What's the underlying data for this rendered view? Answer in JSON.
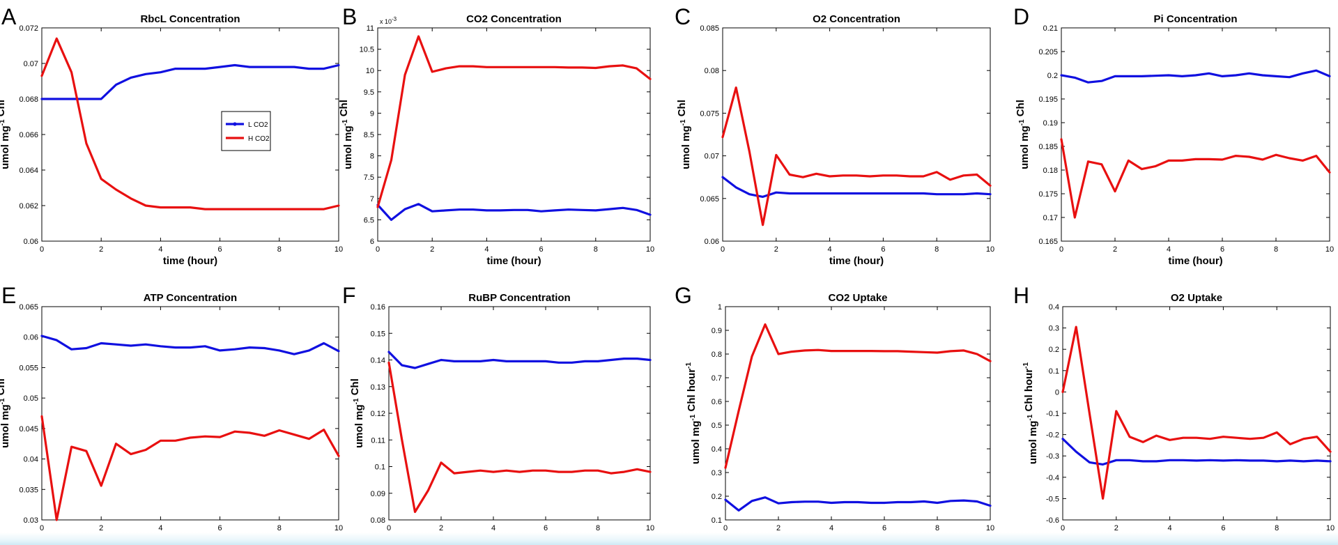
{
  "colors": {
    "low_co2": "#1010e0",
    "high_co2": "#e81010",
    "axes": "#000000"
  },
  "legend": {
    "entries": [
      "L CO2",
      "H CO2"
    ],
    "panel": "A",
    "placement": "right-center"
  },
  "chart_data": [
    {
      "panel": "A",
      "type": "line",
      "title": "RbcL Concentration",
      "xlabel": "time (hour)",
      "ylabel": "umol mg-1 Chl",
      "xlim": [
        0,
        10
      ],
      "ylim": [
        0.06,
        0.072
      ],
      "xticks": [
        "0",
        "2",
        "4",
        "6",
        "8",
        "10"
      ],
      "yticks": [
        "0.06",
        "0.062",
        "0.064",
        "0.066",
        "0.068",
        "0.07",
        "0.072"
      ],
      "x": [
        0,
        0.5,
        1,
        1.5,
        2,
        2.5,
        3,
        3.5,
        4,
        4.5,
        5,
        5.5,
        6,
        6.5,
        7,
        7.5,
        8,
        8.5,
        9,
        9.5,
        10
      ],
      "series": [
        {
          "name": "L CO2",
          "values": [
            0.068,
            0.068,
            0.068,
            0.068,
            0.068,
            0.0688,
            0.0692,
            0.0694,
            0.0695,
            0.0697,
            0.0697,
            0.0697,
            0.0698,
            0.0699,
            0.0698,
            0.0698,
            0.0698,
            0.0698,
            0.0697,
            0.0697,
            0.0699
          ]
        },
        {
          "name": "H CO2",
          "values": [
            0.0693,
            0.0714,
            0.0695,
            0.0655,
            0.0635,
            0.0629,
            0.0624,
            0.062,
            0.0619,
            0.0619,
            0.0619,
            0.0618,
            0.0618,
            0.0618,
            0.0618,
            0.0618,
            0.0618,
            0.0618,
            0.0618,
            0.0618,
            0.062
          ]
        }
      ]
    },
    {
      "panel": "B",
      "type": "line",
      "title": "CO2 Concentration",
      "xlabel": "time (hour)",
      "ylabel": "umol mg-1 Chl",
      "exponent": "x 10",
      "exponent_power": "-3",
      "xlim": [
        0,
        10
      ],
      "ylim": [
        6,
        11
      ],
      "xticks": [
        "0",
        "2",
        "4",
        "6",
        "8",
        "10"
      ],
      "yticks": [
        "6",
        "6.5",
        "7",
        "7.5",
        "8",
        "8.5",
        "9",
        "9.5",
        "10",
        "10.5",
        "11"
      ],
      "x": [
        0,
        0.5,
        1,
        1.5,
        2,
        2.5,
        3,
        3.5,
        4,
        4.5,
        5,
        5.5,
        6,
        6.5,
        7,
        7.5,
        8,
        8.5,
        9,
        9.5,
        10
      ],
      "series": [
        {
          "name": "L CO2",
          "values": [
            6.85,
            6.5,
            6.75,
            6.87,
            6.7,
            6.72,
            6.74,
            6.74,
            6.72,
            6.72,
            6.73,
            6.73,
            6.7,
            6.72,
            6.74,
            6.73,
            6.72,
            6.75,
            6.78,
            6.73,
            6.62
          ]
        },
        {
          "name": "H CO2",
          "values": [
            6.8,
            7.9,
            9.9,
            10.8,
            9.97,
            10.05,
            10.1,
            10.1,
            10.08,
            10.08,
            10.08,
            10.08,
            10.08,
            10.08,
            10.07,
            10.07,
            10.06,
            10.1,
            10.12,
            10.05,
            9.8
          ]
        }
      ]
    },
    {
      "panel": "C",
      "type": "line",
      "title": "O2 Concentration",
      "xlabel": "time (hour)",
      "ylabel": "umol mg-1 Chl",
      "xlim": [
        0,
        10
      ],
      "ylim": [
        0.06,
        0.085
      ],
      "xticks": [
        "0",
        "2",
        "4",
        "6",
        "8",
        "10"
      ],
      "yticks": [
        "0.06",
        "0.065",
        "0.07",
        "0.075",
        "0.08",
        "0.085"
      ],
      "x": [
        0,
        0.5,
        1,
        1.5,
        2,
        2.5,
        3,
        3.5,
        4,
        4.5,
        5,
        5.5,
        6,
        6.5,
        7,
        7.5,
        8,
        8.5,
        9,
        9.5,
        10
      ],
      "series": [
        {
          "name": "L CO2",
          "values": [
            0.0675,
            0.0663,
            0.0655,
            0.0652,
            0.0657,
            0.0656,
            0.0656,
            0.0656,
            0.0656,
            0.0656,
            0.0656,
            0.0656,
            0.0656,
            0.0656,
            0.0656,
            0.0656,
            0.0655,
            0.0655,
            0.0655,
            0.0656,
            0.0655
          ]
        },
        {
          "name": "H CO2",
          "values": [
            0.0722,
            0.078,
            0.0705,
            0.0619,
            0.0701,
            0.0678,
            0.0675,
            0.0679,
            0.0676,
            0.0677,
            0.0677,
            0.0676,
            0.0677,
            0.0677,
            0.0676,
            0.0676,
            0.0681,
            0.0672,
            0.0677,
            0.0678,
            0.0665
          ]
        }
      ]
    },
    {
      "panel": "D",
      "type": "line",
      "title": "Pi Concentration",
      "xlabel": "time (hour)",
      "ylabel": "umol mg-1 Chl",
      "xlim": [
        0,
        10
      ],
      "ylim": [
        0.165,
        0.21
      ],
      "xticks": [
        "0",
        "2",
        "4",
        "6",
        "8",
        "10"
      ],
      "yticks": [
        "0.165",
        "0.17",
        "0.175",
        "0.18",
        "0.185",
        "0.19",
        "0.195",
        "0.2",
        "0.205",
        "0.21"
      ],
      "x": [
        0,
        0.5,
        1,
        1.5,
        2,
        2.5,
        3,
        3.5,
        4,
        4.5,
        5,
        5.5,
        6,
        6.5,
        7,
        7.5,
        8,
        8.5,
        9,
        9.5,
        10
      ],
      "series": [
        {
          "name": "L CO2",
          "values": [
            0.2,
            0.1995,
            0.1985,
            0.1988,
            0.1998,
            0.1998,
            0.1998,
            0.1999,
            0.2,
            0.1998,
            0.2,
            0.2004,
            0.1998,
            0.2,
            0.2004,
            0.2,
            0.1998,
            0.1996,
            0.2004,
            0.201,
            0.1998
          ]
        },
        {
          "name": "H CO2",
          "values": [
            0.1865,
            0.17,
            0.1818,
            0.1812,
            0.1755,
            0.182,
            0.1802,
            0.1808,
            0.182,
            0.182,
            0.1823,
            0.1823,
            0.1822,
            0.183,
            0.1828,
            0.1822,
            0.1832,
            0.1825,
            0.182,
            0.183,
            0.1795
          ]
        }
      ]
    },
    {
      "panel": "E",
      "type": "line",
      "title": "ATP Concentration",
      "xlabel": "time (hour)",
      "ylabel": "umol mg-1 Chl",
      "xlim": [
        0,
        10
      ],
      "ylim": [
        0.03,
        0.065
      ],
      "xticks": [
        "0",
        "2",
        "4",
        "6",
        "8",
        "10"
      ],
      "yticks": [
        "0.03",
        "0.035",
        "0.04",
        "0.045",
        "0.05",
        "0.055",
        "0.06",
        "0.065"
      ],
      "x": [
        0,
        0.5,
        1,
        1.5,
        2,
        2.5,
        3,
        3.5,
        4,
        4.5,
        5,
        5.5,
        6,
        6.5,
        7,
        7.5,
        8,
        8.5,
        9,
        9.5,
        10
      ],
      "series": [
        {
          "name": "L CO2",
          "values": [
            0.0602,
            0.0595,
            0.058,
            0.0582,
            0.059,
            0.0588,
            0.0586,
            0.0588,
            0.0585,
            0.0583,
            0.0583,
            0.0585,
            0.0578,
            0.058,
            0.0583,
            0.0582,
            0.0578,
            0.0572,
            0.0578,
            0.059,
            0.0577
          ]
        },
        {
          "name": "H CO2",
          "values": [
            0.047,
            0.03,
            0.042,
            0.0413,
            0.0356,
            0.0425,
            0.0408,
            0.0415,
            0.043,
            0.043,
            0.0435,
            0.0437,
            0.0436,
            0.0445,
            0.0443,
            0.0438,
            0.0447,
            0.044,
            0.0433,
            0.0448,
            0.0405
          ]
        }
      ]
    },
    {
      "panel": "F",
      "type": "line",
      "title": "RuBP Concentration",
      "xlabel": "time (hour)",
      "ylabel": "umol mg-1 Chl",
      "xlim": [
        0,
        10
      ],
      "ylim": [
        0.08,
        0.16
      ],
      "xticks": [
        "0",
        "2",
        "4",
        "6",
        "8",
        "10"
      ],
      "yticks": [
        "0.08",
        "0.09",
        "0.1",
        "0.11",
        "0.12",
        "0.13",
        "0.14",
        "0.15",
        "0.16"
      ],
      "x": [
        0,
        0.5,
        1,
        1.5,
        2,
        2.5,
        3,
        3.5,
        4,
        4.5,
        5,
        5.5,
        6,
        6.5,
        7,
        7.5,
        8,
        8.5,
        9,
        9.5,
        10
      ],
      "series": [
        {
          "name": "L CO2",
          "values": [
            0.143,
            0.138,
            0.137,
            0.1385,
            0.14,
            0.1395,
            0.1395,
            0.1395,
            0.14,
            0.1395,
            0.1395,
            0.1395,
            0.1395,
            0.139,
            0.139,
            0.1395,
            0.1395,
            0.14,
            0.1405,
            0.1405,
            0.14
          ]
        },
        {
          "name": "H CO2",
          "values": [
            0.139,
            0.11,
            0.083,
            0.091,
            0.1015,
            0.0975,
            0.098,
            0.0985,
            0.098,
            0.0985,
            0.098,
            0.0985,
            0.0985,
            0.098,
            0.098,
            0.0985,
            0.0985,
            0.0975,
            0.098,
            0.099,
            0.098
          ]
        }
      ]
    },
    {
      "panel": "G",
      "type": "line",
      "title": "CO2 Uptake",
      "xlabel": "time (hour)",
      "ylabel": "umol mg-1 Chl hour-1",
      "xlim": [
        0,
        10
      ],
      "ylim": [
        0.1,
        1
      ],
      "xticks": [
        "0",
        "2",
        "4",
        "6",
        "8",
        "10"
      ],
      "yticks": [
        "0.1",
        "0.2",
        "0.3",
        "0.4",
        "0.5",
        "0.6",
        "0.7",
        "0.8",
        "0.9",
        "1"
      ],
      "x": [
        0,
        0.5,
        1,
        1.5,
        2,
        2.5,
        3,
        3.5,
        4,
        4.5,
        5,
        5.5,
        6,
        6.5,
        7,
        7.5,
        8,
        8.5,
        9,
        9.5,
        10
      ],
      "series": [
        {
          "name": "L CO2",
          "values": [
            0.185,
            0.14,
            0.18,
            0.195,
            0.17,
            0.175,
            0.177,
            0.177,
            0.172,
            0.175,
            0.175,
            0.172,
            0.172,
            0.175,
            0.175,
            0.178,
            0.172,
            0.18,
            0.182,
            0.178,
            0.16
          ]
        },
        {
          "name": "H CO2",
          "values": [
            0.32,
            0.56,
            0.79,
            0.925,
            0.8,
            0.81,
            0.815,
            0.817,
            0.813,
            0.813,
            0.813,
            0.813,
            0.812,
            0.812,
            0.81,
            0.808,
            0.806,
            0.812,
            0.815,
            0.8,
            0.77
          ]
        }
      ]
    },
    {
      "panel": "H",
      "type": "line",
      "title": "O2 Uptake",
      "xlabel": "time (hour)",
      "ylabel": "umol mg-1 Chl hour-1",
      "xlim": [
        0,
        10
      ],
      "ylim": [
        -0.6,
        0.4
      ],
      "xticks": [
        "0",
        "2",
        "4",
        "6",
        "8",
        "10"
      ],
      "yticks": [
        "-0.6",
        "-0.5",
        "-0.4",
        "-0.3",
        "-0.2",
        "-0.1",
        "0",
        "0.1",
        "0.2",
        "0.3",
        "0.4"
      ],
      "x": [
        0,
        0.5,
        1,
        1.5,
        2,
        2.5,
        3,
        3.5,
        4,
        4.5,
        5,
        5.5,
        6,
        6.5,
        7,
        7.5,
        8,
        8.5,
        9,
        9.5,
        10
      ],
      "series": [
        {
          "name": "L CO2",
          "values": [
            -0.22,
            -0.28,
            -0.33,
            -0.34,
            -0.32,
            -0.32,
            -0.325,
            -0.325,
            -0.32,
            -0.32,
            -0.322,
            -0.32,
            -0.322,
            -0.32,
            -0.322,
            -0.322,
            -0.325,
            -0.322,
            -0.325,
            -0.322,
            -0.325
          ]
        },
        {
          "name": "H CO2",
          "values": [
            0.0,
            0.305,
            -0.1,
            -0.5,
            -0.09,
            -0.21,
            -0.235,
            -0.205,
            -0.225,
            -0.215,
            -0.215,
            -0.22,
            -0.21,
            -0.215,
            -0.22,
            -0.215,
            -0.19,
            -0.245,
            -0.22,
            -0.21,
            -0.28
          ]
        }
      ]
    }
  ]
}
